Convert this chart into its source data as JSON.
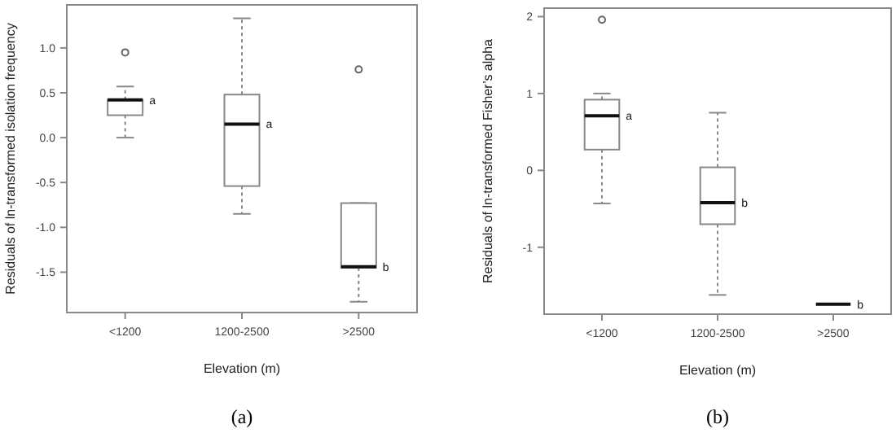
{
  "chart_data": [
    {
      "type": "box",
      "xlabel": "Elevation (m)",
      "ylabel": "Residuals of ln-transformed isolation frequency",
      "categories": [
        "<1200",
        "1200-2500",
        ">2500"
      ],
      "ylim": [
        -1.95,
        1.48
      ],
      "yticks": [
        {
          "value": -1.5,
          "label": "-1.5"
        },
        {
          "value": -1,
          "label": "-1.0"
        },
        {
          "value": -0.5,
          "label": "-0.5"
        },
        {
          "value": 0,
          "label": "0.0"
        },
        {
          "value": 0.5,
          "label": "0.5"
        },
        {
          "value": 1,
          "label": "1.0"
        }
      ],
      "grid": false,
      "boxes": [
        {
          "low": 0.0,
          "q1": 0.25,
          "median": 0.42,
          "q3": 0.42,
          "high": 0.57,
          "outliers": [
            0.95
          ]
        },
        {
          "low": -0.85,
          "q1": -0.54,
          "median": 0.15,
          "q3": 0.48,
          "high": 1.33
        },
        {
          "low": -1.83,
          "q1": -1.45,
          "median": -1.44,
          "q3": -0.73,
          "high": -0.73,
          "outliers": [
            0.76
          ]
        }
      ],
      "annotations": [
        {
          "text": "a",
          "x": "<1200",
          "y": 0.42
        },
        {
          "text": "a",
          "x": "1200-2500",
          "y": 0.15
        },
        {
          "text": "b",
          "x": ">2500",
          "y": -1.44
        },
        "(a)"
      ]
    },
    {
      "type": "box",
      "xlabel": "Elevation (m)",
      "ylabel": "Residuals of ln-transformed Fisher’s alpha",
      "categories": [
        "<1200",
        "1200-2500",
        ">2500"
      ],
      "ylim": [
        -1.87,
        2.11
      ],
      "yticks": [
        -1,
        0,
        1,
        2
      ],
      "grid": false,
      "boxes": [
        {
          "low": -0.43,
          "q1": 0.27,
          "median": 0.71,
          "q3": 0.92,
          "high": 1.0,
          "outliers": [
            1.96
          ]
        },
        {
          "low": -1.62,
          "q1": -0.7,
          "median": -0.42,
          "q3": 0.04,
          "high": 0.75
        },
        {
          "low": -1.74,
          "q1": -1.74,
          "median": -1.74,
          "q3": -1.74,
          "high": -1.74
        }
      ],
      "annotations": [
        {
          "text": "a",
          "x": "<1200",
          "y": 0.71
        },
        {
          "text": "b",
          "x": "1200-2500",
          "y": -0.42
        },
        {
          "text": "b",
          "x": ">2500",
          "y": -1.74
        },
        "(b)"
      ]
    }
  ]
}
